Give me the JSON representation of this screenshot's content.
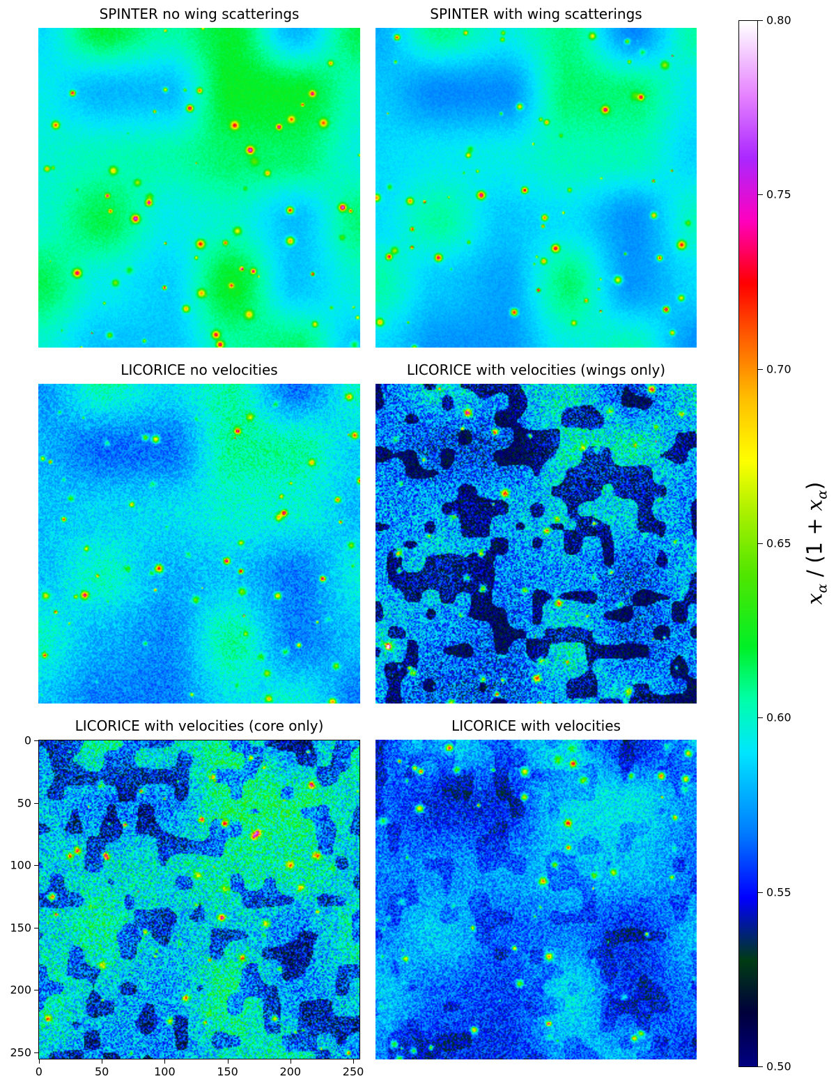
{
  "chart_data": {
    "type": "heatmap",
    "colormap": "gist_ncar",
    "value_range": [
      0.5,
      0.8
    ],
    "colorbar": {
      "ticks": [
        "0.80",
        "0.75",
        "0.70",
        "0.65",
        "0.60",
        "0.55",
        "0.50"
      ],
      "label": "xα / (1 + xα)"
    },
    "grid_size": [
      256,
      256
    ],
    "panels": [
      {
        "title": "SPINTER no wing scatterings",
        "base_level": 0.6,
        "noise": 0.004,
        "dark_patches": 0.0,
        "seed": 11
      },
      {
        "title": "SPINTER with wing scatterings",
        "base_level": 0.59,
        "noise": 0.004,
        "dark_patches": 0.0,
        "seed": 23
      },
      {
        "title": "LICORICE no velocities",
        "base_level": 0.585,
        "noise": 0.012,
        "dark_patches": 0.0,
        "seed": 37
      },
      {
        "title": "LICORICE with velocities (wings only)",
        "base_level": 0.575,
        "noise": 0.03,
        "dark_patches": 0.55,
        "seed": 41
      },
      {
        "title": "LICORICE with velocities (core only)",
        "base_level": 0.59,
        "noise": 0.03,
        "dark_patches": 0.4,
        "seed": 53,
        "x_ticks": [
          "0",
          "50",
          "100",
          "150",
          "200",
          "250"
        ],
        "y_ticks": [
          "0",
          "50",
          "100",
          "150",
          "200",
          "250"
        ]
      },
      {
        "title": "LICORICE with velocities",
        "base_level": 0.57,
        "noise": 0.018,
        "dark_patches": 0.15,
        "seed": 67
      }
    ]
  }
}
